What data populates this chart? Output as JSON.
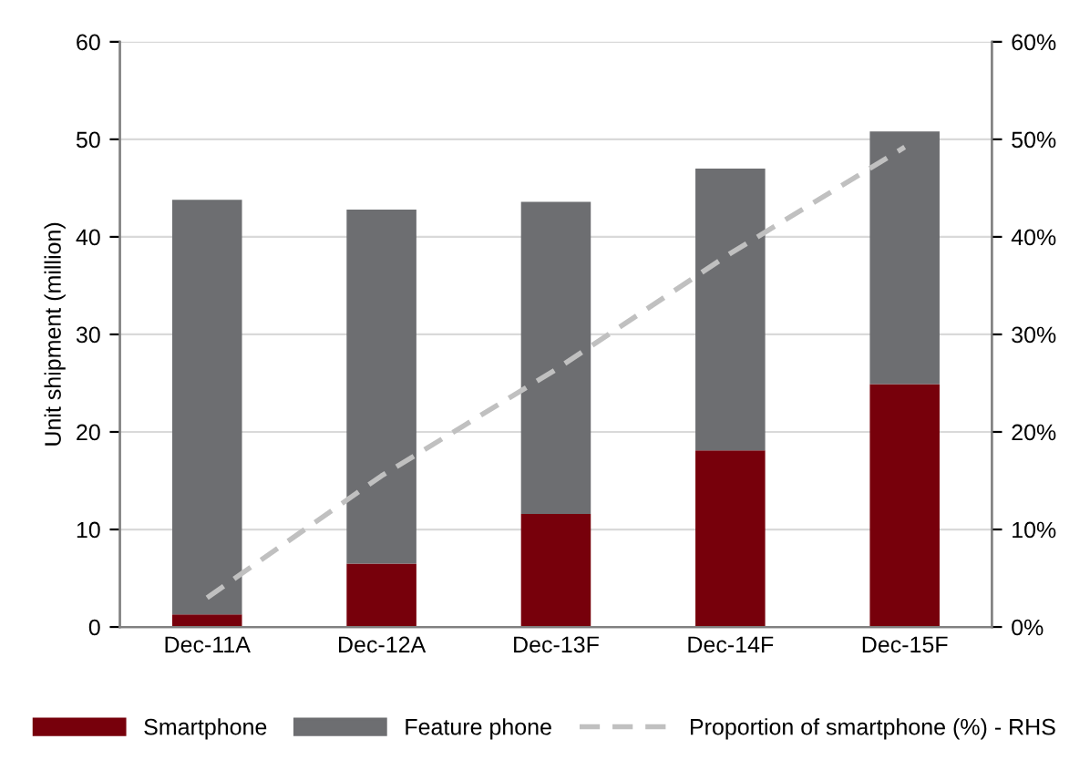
{
  "chart_data": {
    "type": "bar",
    "stacked": true,
    "ylabel": "Unit shipment (million)",
    "categories": [
      "Dec-11A",
      "Dec-12A",
      "Dec-13F",
      "Dec-14F",
      "Dec-15F"
    ],
    "series": [
      {
        "name": "Smartphone",
        "color": "#77000b",
        "values": [
          1.3,
          6.5,
          11.6,
          18.1,
          24.9
        ]
      },
      {
        "name": "Feature phone",
        "color": "#6d6e71",
        "values": [
          42.5,
          36.3,
          32.0,
          28.9,
          25.9
        ]
      },
      {
        "name": "Proportion of smartphone (%) - RHS",
        "type": "line",
        "axis": "y2",
        "color": "#c0c0c0",
        "line_style": "dashed",
        "values": [
          3.0,
          15.5,
          26.4,
          38.3,
          49.2
        ]
      }
    ],
    "ylim": [
      0,
      60
    ],
    "yticks": [
      0,
      10,
      20,
      30,
      40,
      50,
      60
    ],
    "y2lim": [
      0,
      60
    ],
    "y2ticks": [
      {
        "value": 0,
        "label": "0%"
      },
      {
        "value": 10,
        "label": "10%"
      },
      {
        "value": 20,
        "label": "20%"
      },
      {
        "value": 30,
        "label": "30%"
      },
      {
        "value": 40,
        "label": "40%"
      },
      {
        "value": 50,
        "label": "50%"
      },
      {
        "value": 60,
        "label": "60%"
      }
    ],
    "grid": "y",
    "legend": "bottom"
  }
}
